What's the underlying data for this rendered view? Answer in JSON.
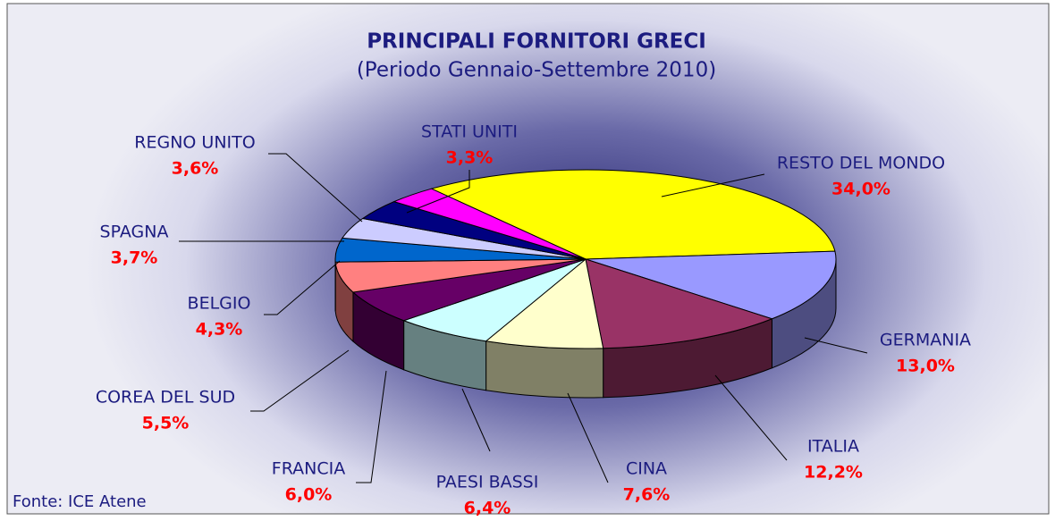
{
  "chart_data": {
    "type": "pie",
    "title": "PRINCIPALI FORNITORI  GRECI",
    "subtitle": "(Periodo Gennaio-Settembre 2010)",
    "source": "Fonte: ICE Atene",
    "categories": [
      "RESTO DEL MONDO",
      "GERMANIA",
      "ITALIA",
      "CINA",
      "PAESI BASSI",
      "FRANCIA",
      "COREA DEL SUD",
      "BELGIO",
      "SPAGNA",
      "REGNO UNITO",
      "STATI UNITI"
    ],
    "values": [
      34.0,
      13.0,
      12.2,
      7.6,
      6.4,
      6.0,
      5.5,
      4.3,
      3.7,
      3.6,
      3.3
    ],
    "value_labels": [
      "34,0%",
      "13,0%",
      "12,2%",
      "7,6%",
      "6,4%",
      "6,0%",
      "5,5%",
      "4,3%",
      "3,7%",
      "3,6%",
      "3,3%"
    ],
    "colors": [
      "#ffff00",
      "#9999ff",
      "#993366",
      "#ffffcc",
      "#ccffff",
      "#660066",
      "#ff8080",
      "#0066cc",
      "#ccccff",
      "#000080",
      "#ff00ff"
    ]
  }
}
